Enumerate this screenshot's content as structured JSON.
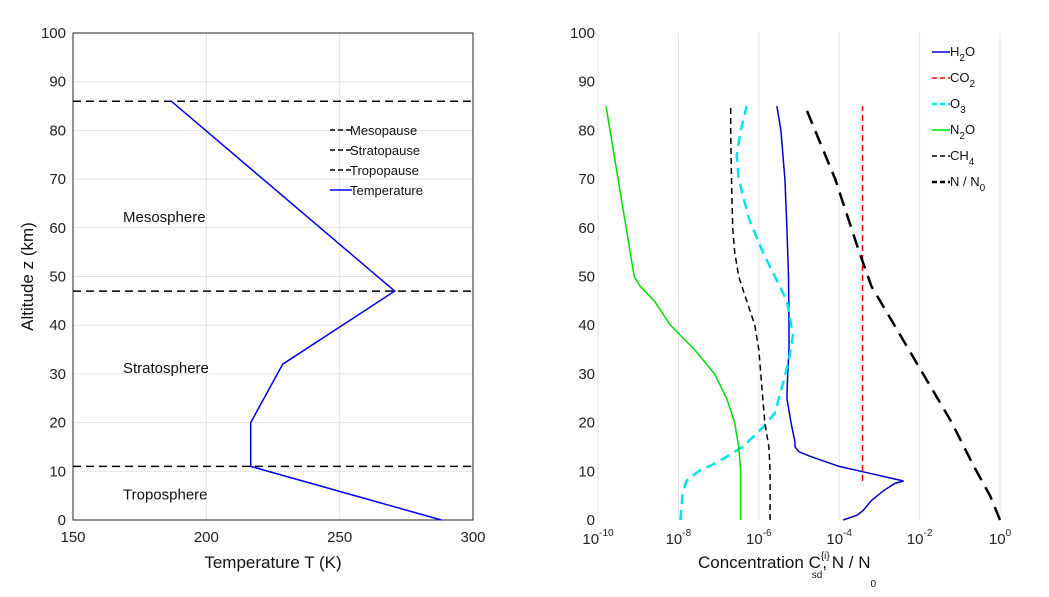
{
  "chart_data": [
    {
      "type": "line",
      "title": "",
      "xlabel": "Temperature T (K)",
      "ylabel": "Altitude z (km)",
      "xlim": [
        150,
        300
      ],
      "ylim": [
        0,
        100
      ],
      "xticks": [
        150,
        200,
        250,
        300
      ],
      "yticks": [
        0,
        10,
        20,
        30,
        40,
        50,
        60,
        70,
        80,
        90,
        100
      ],
      "grid": true,
      "legend_position": "top-right",
      "series": [
        {
          "name": "Mesopause",
          "style": "dashed",
          "color": "#000000",
          "x": [
            150,
            300
          ],
          "y": [
            86,
            86
          ]
        },
        {
          "name": "Stratopause",
          "style": "dashed",
          "color": "#000000",
          "x": [
            150,
            300
          ],
          "y": [
            47,
            47
          ]
        },
        {
          "name": "Tropopause",
          "style": "dashed",
          "color": "#000000",
          "x": [
            150,
            300
          ],
          "y": [
            11,
            11
          ]
        },
        {
          "name": "Temperature",
          "style": "solid",
          "color": "#0000ff",
          "x": [
            288.15,
            216.65,
            216.65,
            228.65,
            270.65,
            186.87
          ],
          "y": [
            0,
            11,
            20,
            32,
            47,
            86
          ]
        }
      ],
      "annotations": [
        {
          "text": "Mesosphere",
          "x": 168,
          "y": 62
        },
        {
          "text": "Stratosphere",
          "x": 168,
          "y": 31
        },
        {
          "text": "Troposphere",
          "x": 168,
          "y": 5
        }
      ]
    },
    {
      "type": "line",
      "title": "",
      "xlabel_main": "Concentration C",
      "xlabel_sup": "{i}",
      "xlabel_sub": "sd",
      "xlabel_mid": ", N / N",
      "xlabel_sub2": "0",
      "ylabel": "",
      "xscale": "log",
      "xlim_exp": [
        -10,
        0
      ],
      "ylim": [
        0,
        100
      ],
      "xtick_exps": [
        "-10",
        "-8",
        "-6",
        "-4",
        "-2",
        "0"
      ],
      "yticks": [
        0,
        10,
        20,
        30,
        40,
        50,
        60,
        70,
        80,
        90,
        100
      ],
      "grid": true,
      "legend_position": "top-right",
      "series": [
        {
          "name": "H2O",
          "base": "H",
          "sub": "2",
          "tail": "O",
          "style": "solid",
          "color": "#0000cc",
          "log10x": [
            -3.9,
            -3.55,
            -3.4,
            -3.2,
            -2.9,
            -2.62,
            -2.4,
            -3.2,
            -4.0,
            -4.7,
            -5.0,
            -5.1,
            -5.1,
            -5.2,
            -5.3,
            -5.28,
            -5.25,
            -5.25,
            -5.26,
            -5.3,
            -5.35,
            -5.45,
            -5.55
          ],
          "y": [
            0,
            1,
            2,
            4,
            6,
            7.5,
            8,
            9.5,
            11,
            13,
            14,
            15,
            16,
            20,
            25,
            30,
            35,
            40,
            50,
            60,
            70,
            80,
            85
          ]
        },
        {
          "name": "CO2",
          "base": "CO",
          "sub": "2",
          "tail": "",
          "style": "dashed",
          "color": "#ff0000",
          "log10x": [
            -3.42,
            -3.42
          ],
          "y": [
            8,
            85
          ]
        },
        {
          "name": "O3",
          "base": "O",
          "sub": "3",
          "tail": "",
          "style": "dashed",
          "color": "#00e5ee",
          "log10x": [
            -7.95,
            -7.9,
            -7.8,
            -7.5,
            -7.0,
            -6.4,
            -5.9,
            -5.6,
            -5.4,
            -5.25,
            -5.15,
            -5.3,
            -5.6,
            -5.9,
            -6.25,
            -6.5,
            -6.55,
            -6.45,
            -6.3
          ],
          "y": [
            0,
            5,
            8,
            10,
            12,
            15,
            19,
            22,
            28,
            33,
            38,
            45,
            50,
            55,
            62,
            70,
            75,
            80,
            85
          ]
        },
        {
          "name": "N2O",
          "base": "N",
          "sub": "2",
          "tail": "O",
          "style": "solid",
          "color": "#00dd00",
          "log10x": [
            -6.45,
            -6.45,
            -6.5,
            -6.6,
            -6.8,
            -7.1,
            -7.6,
            -8.2,
            -8.6,
            -8.95,
            -9.1,
            -9.2,
            -9.4,
            -9.6,
            -9.8
          ],
          "y": [
            0,
            10,
            15,
            20,
            25,
            30,
            35,
            40,
            45,
            48,
            50,
            55,
            65,
            75,
            85
          ]
        },
        {
          "name": "CH4",
          "base": "CH",
          "sub": "4",
          "tail": "",
          "style": "dashed",
          "color": "#000000",
          "log10x": [
            -5.72,
            -5.72,
            -5.75,
            -5.85,
            -5.9,
            -6.0,
            -6.1,
            -6.3,
            -6.5,
            -6.6,
            -6.65,
            -6.68,
            -6.7,
            -6.7
          ],
          "y": [
            0,
            10,
            15,
            20,
            25,
            35,
            40,
            45,
            50,
            55,
            60,
            70,
            80,
            85
          ]
        },
        {
          "name": "N / N0",
          "base": "N / N",
          "sub": "0",
          "tail": "",
          "style": "dashed",
          "color": "#000000",
          "log10x": [
            0,
            -0.25,
            -0.65,
            -1.2,
            -2.2,
            -3.2,
            -3.5,
            -4.1,
            -4.8
          ],
          "y": [
            0,
            5,
            11,
            20,
            34,
            48,
            55,
            70,
            84
          ]
        }
      ]
    }
  ]
}
